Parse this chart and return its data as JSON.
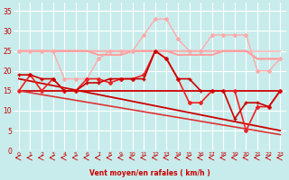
{
  "bg_color": "#c8ecec",
  "grid_color": "#ffffff",
  "xlabel": "Vent moyen/en rafales ( km/h )",
  "xlabel_color": "#cc0000",
  "tick_color": "#cc0000",
  "arrow_color": "#cc0000",
  "xlim": [
    -0.5,
    23.5
  ],
  "ylim": [
    0,
    37
  ],
  "yticks": [
    0,
    5,
    10,
    15,
    20,
    25,
    30,
    35
  ],
  "xticks": [
    0,
    1,
    2,
    3,
    4,
    5,
    6,
    7,
    8,
    9,
    10,
    11,
    12,
    13,
    14,
    15,
    16,
    17,
    18,
    19,
    20,
    21,
    22,
    23
  ],
  "lines": [
    {
      "x": [
        0,
        1,
        2,
        3,
        4,
        5,
        6,
        7,
        8,
        9,
        10,
        11,
        12,
        13,
        14,
        15,
        16,
        17,
        18,
        19,
        20,
        21,
        22,
        23
      ],
      "y": [
        25,
        25,
        25,
        25,
        25,
        25,
        25,
        25,
        25,
        25,
        25,
        25,
        25,
        25,
        25,
        25,
        25,
        25,
        25,
        25,
        25,
        25,
        25,
        25
      ],
      "color": "#ffbbbb",
      "marker": null,
      "lw": 1.3,
      "zorder": 2
    },
    {
      "x": [
        0,
        1,
        2,
        3,
        4,
        5,
        6,
        7,
        8,
        9,
        10,
        11,
        12,
        13,
        14,
        15,
        16,
        17,
        18,
        19,
        20,
        21,
        22,
        23
      ],
      "y": [
        25,
        25,
        25,
        25,
        25,
        25,
        25,
        25,
        25,
        25,
        25,
        25,
        25,
        25,
        25,
        25,
        25,
        25,
        25,
        25,
        25,
        23,
        23,
        23
      ],
      "color": "#ffaaaa",
      "marker": null,
      "lw": 1.3,
      "zorder": 2
    },
    {
      "x": [
        0,
        1,
        2,
        3,
        4,
        5,
        6,
        7,
        8,
        9,
        10,
        11,
        12,
        13,
        14,
        15,
        16,
        17,
        18,
        19,
        20,
        21,
        22,
        23
      ],
      "y": [
        25,
        25,
        25,
        25,
        18,
        18,
        18,
        23,
        25,
        25,
        25,
        29,
        33,
        33,
        28,
        25,
        25,
        29,
        29,
        29,
        29,
        20,
        20,
        23
      ],
      "color": "#ffaaaa",
      "marker": "D",
      "ms": 2.0,
      "lw": 1.0,
      "zorder": 3
    },
    {
      "x": [
        0,
        1,
        2,
        3,
        4,
        5,
        6,
        7,
        8,
        9,
        10,
        11,
        12,
        13,
        14,
        15,
        16,
        17,
        18,
        19,
        20,
        21,
        22,
        23
      ],
      "y": [
        25,
        25,
        25,
        25,
        25,
        25,
        25,
        24,
        24,
        24,
        25,
        25,
        25,
        25,
        24,
        24,
        24,
        24,
        25,
        25,
        25,
        23,
        23,
        23
      ],
      "color": "#ff9999",
      "marker": null,
      "lw": 1.3,
      "zorder": 2
    },
    {
      "x": [
        0,
        1,
        2,
        3,
        4,
        5,
        6,
        7,
        8,
        9,
        10,
        11,
        12,
        13,
        14,
        15,
        16,
        17,
        18,
        19,
        20,
        21,
        22,
        23
      ],
      "y": [
        15,
        19,
        15,
        18,
        15,
        15,
        18,
        18,
        17,
        18,
        18,
        19,
        25,
        23,
        18,
        12,
        12,
        15,
        15,
        15,
        5,
        11,
        11,
        15
      ],
      "color": "#ee2222",
      "marker": "D",
      "ms": 2.0,
      "lw": 1.2,
      "zorder": 4
    },
    {
      "x": [
        0,
        1,
        2,
        3,
        4,
        5,
        6,
        7,
        8,
        9,
        10,
        11,
        12,
        13,
        14,
        15,
        16,
        17,
        18,
        19,
        20,
        21,
        22,
        23
      ],
      "y": [
        19,
        19,
        18,
        18,
        15,
        15,
        17,
        17,
        18,
        18,
        18,
        18,
        25,
        23,
        18,
        18,
        15,
        15,
        15,
        8,
        12,
        12,
        11,
        15
      ],
      "color": "#cc0000",
      "marker": "+",
      "ms": 3.5,
      "lw": 1.2,
      "zorder": 4
    },
    {
      "x": [
        0,
        23
      ],
      "y": [
        15,
        15
      ],
      "color": "#cc0000",
      "marker": null,
      "lw": 1.3,
      "zorder": 2
    },
    {
      "x": [
        0,
        23
      ],
      "y": [
        18,
        5
      ],
      "color": "#cc0000",
      "marker": null,
      "lw": 1.3,
      "zorder": 2
    },
    {
      "x": [
        0,
        23
      ],
      "y": [
        15,
        4
      ],
      "color": "#dd3333",
      "marker": null,
      "lw": 1.2,
      "zorder": 2
    }
  ]
}
